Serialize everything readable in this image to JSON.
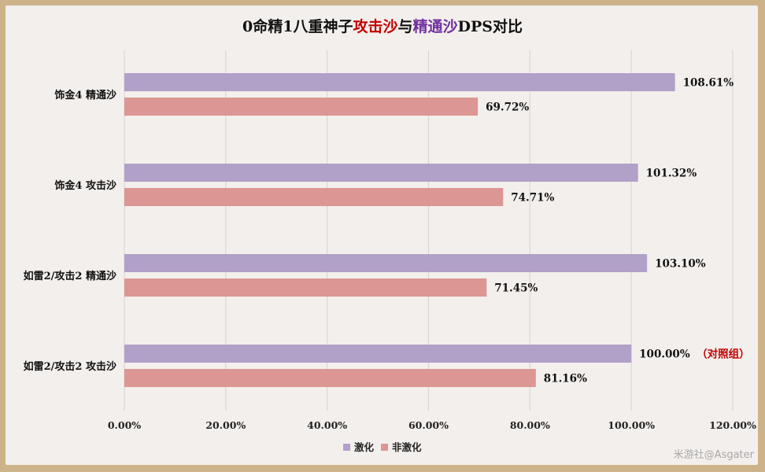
{
  "title": {
    "prefix": "0命精1八重神子",
    "part_attack": "攻击沙",
    "connector": "与",
    "part_em": "精通沙",
    "suffix": "DPS对比"
  },
  "watermark": "米游社@Asgater",
  "colors": {
    "series_1": "#b1a0c8",
    "series_2": "#dc9693",
    "title_red": "#c00000",
    "title_purple": "#7030a0",
    "annotation": "#c00000",
    "background": "#f3efec",
    "border": "#cdb38a"
  },
  "chart_data": {
    "type": "bar",
    "orientation": "horizontal",
    "categories": [
      "饰金4 精通沙",
      "饰金4 攻击沙",
      "如雷2/攻击2 精通沙",
      "如雷2/攻击2 攻击沙"
    ],
    "series": [
      {
        "name": "激化",
        "values": [
          108.61,
          101.32,
          103.1,
          100.0
        ],
        "labels": [
          "108.61%",
          "101.32%",
          "103.10%",
          "100.00%"
        ]
      },
      {
        "name": "非激化",
        "values": [
          69.72,
          74.71,
          71.45,
          81.16
        ],
        "labels": [
          "69.72%",
          "74.71%",
          "71.45%",
          "81.16%"
        ]
      }
    ],
    "xlim": [
      0,
      120
    ],
    "x_ticks": [
      0,
      20,
      40,
      60,
      80,
      100,
      120
    ],
    "x_tick_labels": [
      "0.00%",
      "20.00%",
      "40.00%",
      "60.00%",
      "80.00%",
      "100.00%",
      "120.00%"
    ],
    "annotation": {
      "category_index": 3,
      "series_index": 0,
      "text": "（对照组）"
    },
    "grid": true,
    "legend": "bottom",
    "xlabel": "",
    "ylabel": ""
  }
}
